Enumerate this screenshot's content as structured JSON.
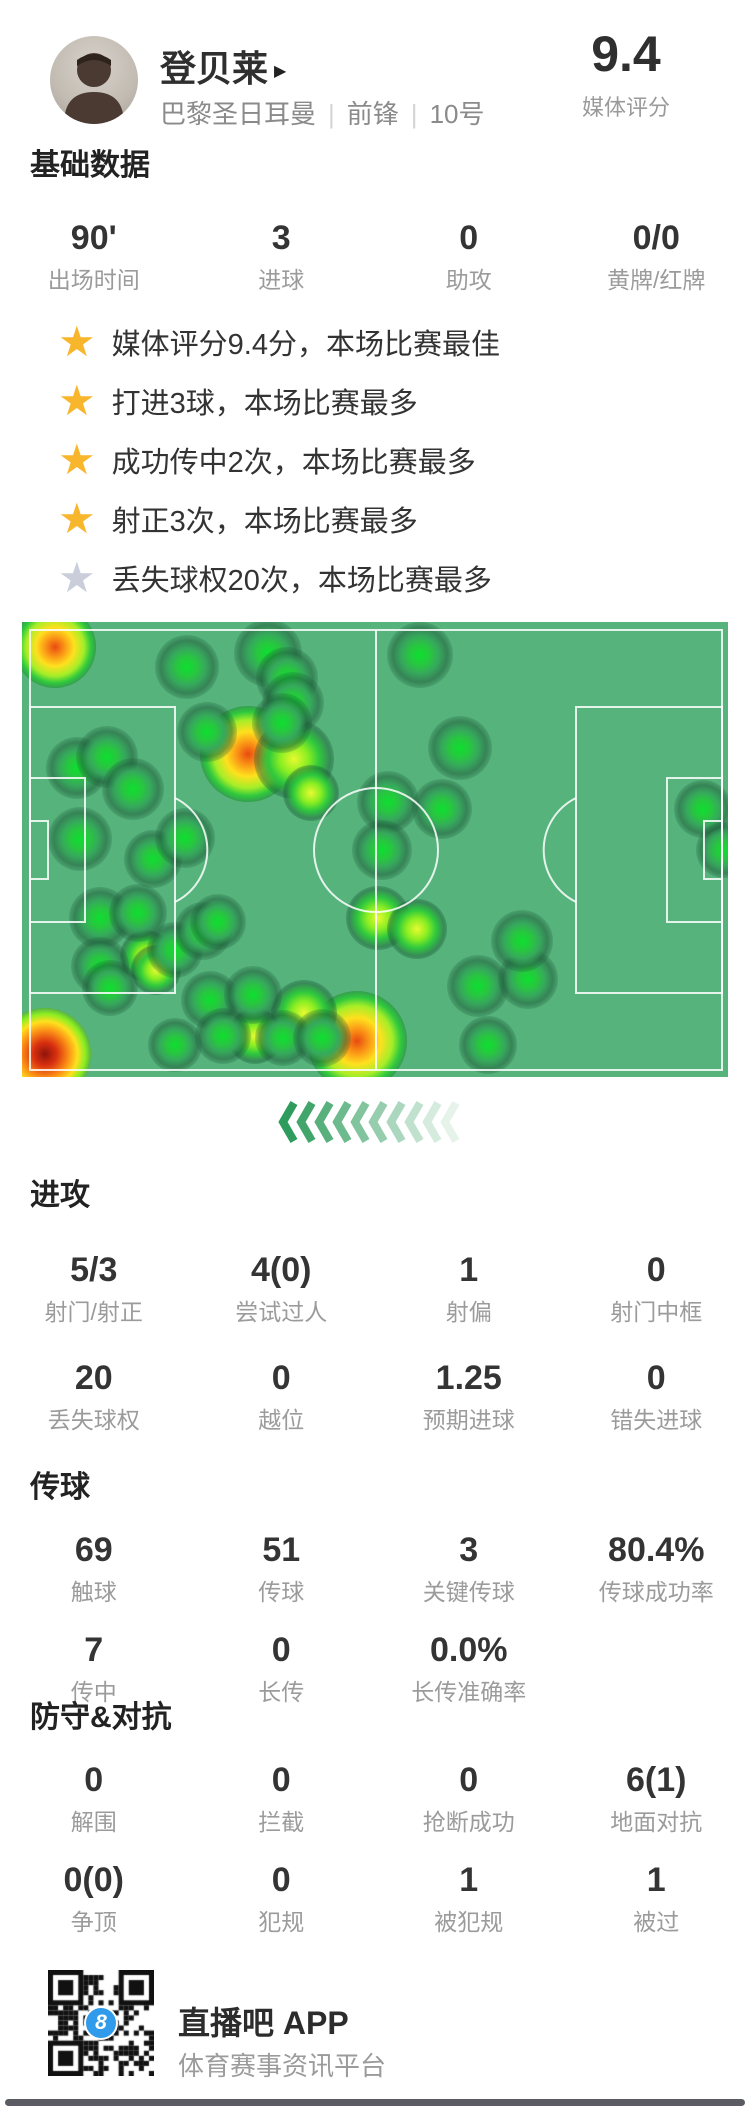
{
  "header": {
    "name": "登贝莱",
    "link_arrow": "▶",
    "team": "巴黎圣日耳曼",
    "position": "前锋",
    "number": "10号",
    "rating": "9.4",
    "rating_label": "媒体评分"
  },
  "basic": {
    "title": "基础数据",
    "stats": [
      {
        "value": "90'",
        "label": "出场时间"
      },
      {
        "value": "3",
        "label": "进球"
      },
      {
        "value": "0",
        "label": "助攻"
      },
      {
        "value": "0/0",
        "label": "黄牌/红牌"
      }
    ]
  },
  "highlights": {
    "items": [
      {
        "icon": "star-icon",
        "color": "gold",
        "text": "媒体评分9.4分，本场比赛最佳"
      },
      {
        "icon": "star-icon",
        "color": "gold",
        "text": "打进3球，本场比赛最多"
      },
      {
        "icon": "star-icon",
        "color": "gold",
        "text": "成功传中2次，本场比赛最多"
      },
      {
        "icon": "star-icon",
        "color": "gold",
        "text": "射正3次，本场比赛最多"
      },
      {
        "icon": "star-icon",
        "color": "gray",
        "text": "丢失球权20次，本场比赛最多"
      }
    ]
  },
  "heatmap": {
    "pitch_color": "#55b37b",
    "line_color": "rgba(255,255,255,0.85)",
    "chevron_count": 10,
    "chevron_color": "#2E9C5C",
    "blob_format": [
      "x_pct",
      "y_pct",
      "diameter_px",
      "intensity"
    ],
    "blobs": [
      [
        4.7,
        5.5,
        82,
        "hot"
      ],
      [
        3.3,
        95,
        92,
        "hotr"
      ],
      [
        32,
        29,
        96,
        "hot"
      ],
      [
        47.5,
        92,
        100,
        "hot"
      ],
      [
        38.5,
        30,
        80,
        "warm"
      ],
      [
        41,
        37.5,
        56,
        "warm"
      ],
      [
        40,
        86,
        66,
        "warm"
      ],
      [
        50.4,
        65,
        64,
        "warm"
      ],
      [
        55.9,
        67.5,
        60,
        "warm"
      ],
      [
        17.5,
        73.5,
        52,
        "warm"
      ],
      [
        19,
        76.5,
        50,
        "warm"
      ],
      [
        33,
        91,
        56,
        "warm"
      ],
      [
        23.4,
        9.8,
        64,
        "g"
      ],
      [
        34.9,
        6.8,
        68,
        "g"
      ],
      [
        37.5,
        12.3,
        62,
        "g"
      ],
      [
        38.4,
        17.8,
        62,
        "g"
      ],
      [
        36.8,
        22.2,
        60,
        "g"
      ],
      [
        26.2,
        24.1,
        60,
        "g"
      ],
      [
        56.4,
        7.2,
        66,
        "g"
      ],
      [
        62,
        27.7,
        64,
        "g"
      ],
      [
        7.8,
        32,
        62,
        "g"
      ],
      [
        12,
        29.6,
        62,
        "g"
      ],
      [
        15.7,
        36.8,
        62,
        "g"
      ],
      [
        8.2,
        47.8,
        64,
        "g"
      ],
      [
        18.6,
        52,
        58,
        "g"
      ],
      [
        23.1,
        47.4,
        60,
        "g"
      ],
      [
        51.8,
        39.5,
        62,
        "g"
      ],
      [
        59.5,
        41.2,
        60,
        "g"
      ],
      [
        51,
        50,
        60,
        "g"
      ],
      [
        11,
        65,
        62,
        "g"
      ],
      [
        16.5,
        64,
        58,
        "g"
      ],
      [
        11,
        75.6,
        58,
        "g"
      ],
      [
        12.5,
        80.5,
        56,
        "g"
      ],
      [
        21.7,
        72,
        56,
        "g"
      ],
      [
        25.6,
        68,
        58,
        "g"
      ],
      [
        27.8,
        66,
        56,
        "g"
      ],
      [
        26.6,
        83,
        58,
        "g"
      ],
      [
        32.7,
        82,
        58,
        "g"
      ],
      [
        21.7,
        93,
        54,
        "g"
      ],
      [
        28.5,
        91,
        56,
        "g"
      ],
      [
        37,
        91.5,
        56,
        "g"
      ],
      [
        42.5,
        91.5,
        58,
        "g"
      ],
      [
        64.6,
        80,
        62,
        "g"
      ],
      [
        71.7,
        78.5,
        60,
        "g"
      ],
      [
        70.8,
        70.2,
        62,
        "g"
      ],
      [
        66,
        93,
        58,
        "g"
      ],
      [
        96.5,
        41,
        58,
        "g"
      ],
      [
        99.5,
        50,
        56,
        "g"
      ]
    ]
  },
  "sections": [
    {
      "title": "进攻",
      "rows": [
        [
          {
            "value": "5/3",
            "label": "射门/射正"
          },
          {
            "value": "4(0)",
            "label": "尝试过人"
          },
          {
            "value": "1",
            "label": "射偏"
          },
          {
            "value": "0",
            "label": "射门中框"
          }
        ],
        [
          {
            "value": "20",
            "label": "丢失球权"
          },
          {
            "value": "0",
            "label": "越位"
          },
          {
            "value": "1.25",
            "label": "预期进球"
          },
          {
            "value": "0",
            "label": "错失进球"
          }
        ]
      ]
    },
    {
      "title": "传球",
      "rows": [
        [
          {
            "value": "69",
            "label": "触球"
          },
          {
            "value": "51",
            "label": "传球"
          },
          {
            "value": "3",
            "label": "关键传球"
          },
          {
            "value": "80.4%",
            "label": "传球成功率"
          }
        ],
        [
          {
            "value": "7",
            "label": "传中"
          },
          {
            "value": "0",
            "label": "长传"
          },
          {
            "value": "0.0%",
            "label": "长传准确率"
          },
          {
            "value": "",
            "label": ""
          }
        ]
      ]
    },
    {
      "title": "防守&对抗",
      "rows": [
        [
          {
            "value": "0",
            "label": "解围"
          },
          {
            "value": "0",
            "label": "拦截"
          },
          {
            "value": "0",
            "label": "抢断成功"
          },
          {
            "value": "6(1)",
            "label": "地面对抗"
          }
        ],
        [
          {
            "value": "0(0)",
            "label": "争顶"
          },
          {
            "value": "0",
            "label": "犯规"
          },
          {
            "value": "1",
            "label": "被犯规"
          },
          {
            "value": "1",
            "label": "被过"
          }
        ]
      ]
    }
  ],
  "footer": {
    "app_name": "直播吧 APP",
    "tagline": "体育赛事资讯平台",
    "badge": "8"
  }
}
